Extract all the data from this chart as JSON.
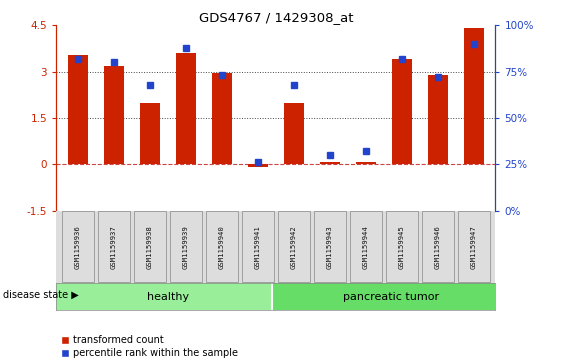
{
  "title": "GDS4767 / 1429308_at",
  "samples": [
    "GSM1159936",
    "GSM1159937",
    "GSM1159938",
    "GSM1159939",
    "GSM1159940",
    "GSM1159941",
    "GSM1159942",
    "GSM1159943",
    "GSM1159944",
    "GSM1159945",
    "GSM1159946",
    "GSM1159947"
  ],
  "transformed_count": [
    3.55,
    3.2,
    2.0,
    3.6,
    2.95,
    -0.08,
    2.0,
    0.08,
    0.08,
    3.4,
    2.9,
    4.4
  ],
  "percentile_rank": [
    82,
    80,
    68,
    88,
    73,
    26,
    68,
    30,
    32,
    82,
    72,
    90
  ],
  "groups": [
    {
      "label": "healthy",
      "start": 0,
      "end": 5,
      "color": "#90ee90"
    },
    {
      "label": "pancreatic tumor",
      "start": 6,
      "end": 11,
      "color": "#66dd66"
    }
  ],
  "ylim_left": [
    -1.5,
    4.5
  ],
  "ylim_right": [
    0,
    100
  ],
  "yticks_left": [
    -1.5,
    0.0,
    1.5,
    3.0,
    4.5
  ],
  "yticks_right": [
    0,
    25,
    50,
    75,
    100
  ],
  "ytick_labels_left": [
    "-1.5",
    "0",
    "1.5",
    "3",
    "4.5"
  ],
  "ytick_labels_right": [
    "0%",
    "25%",
    "50%",
    "75%",
    "100%"
  ],
  "bar_color_red": "#cc2200",
  "bar_color_blue": "#2244cc",
  "hline_color": "#cc4444",
  "bg_color": "#ffffff",
  "legend_items": [
    "transformed count",
    "percentile rank within the sample"
  ],
  "disease_state_label": "disease state",
  "bar_width": 0.55,
  "sample_box_color": "#dddddd",
  "group_healthy_color": "#99ee99",
  "group_tumor_color": "#66dd66",
  "divider_color": "#ffffff"
}
